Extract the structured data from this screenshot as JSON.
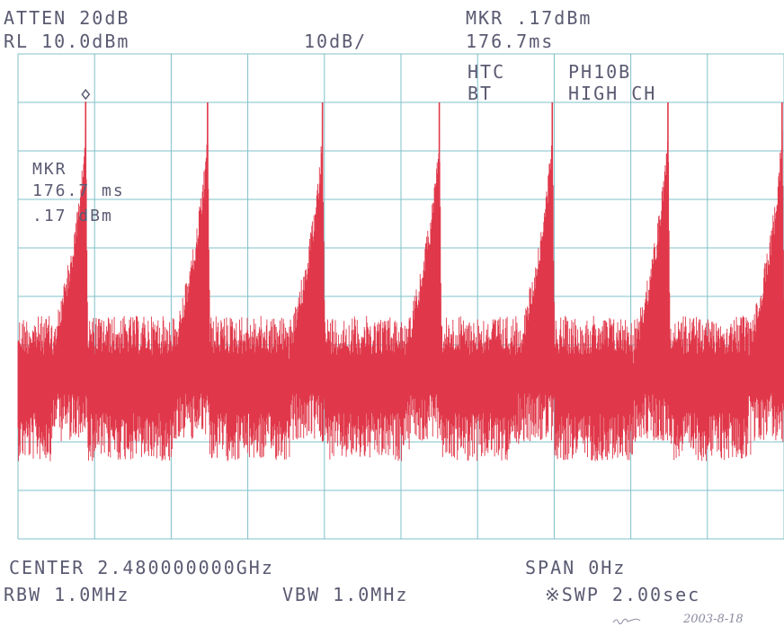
{
  "header": {
    "atten": "ATTEN 20dB",
    "ref_level": "RL 10.0dBm",
    "scale": "10dB/",
    "marker_level": "MKR .17dBm",
    "marker_time": "176.7ms",
    "label_left_1": "HTC",
    "label_right_1": "PH10B",
    "label_left_2": "BT",
    "label_right_2": "HIGH CH"
  },
  "marker_box": {
    "line1": "MKR",
    "line2": "176.7 ms",
    "line3": ".17 dBm"
  },
  "footer": {
    "center": "CENTER 2.480000000GHz",
    "span": "SPAN 0Hz",
    "rbw": "RBW 1.0MHz",
    "vbw": "VBW 1.0MHz",
    "sweep": "※SWP 2.00sec"
  },
  "annotation": {
    "signature": "2003-8-18"
  },
  "colors": {
    "trace": "#e0384a",
    "grid": "#7fc0c8",
    "text": "#5a5a72"
  },
  "chart_data": {
    "type": "line",
    "title": "",
    "xlabel": "",
    "ylabel": "",
    "x_unit": "s",
    "y_unit": "dBm",
    "xlim": [
      0,
      2.0
    ],
    "ylim": [
      -90,
      10
    ],
    "grid": true,
    "reference_level": 10,
    "scale_per_div": 10,
    "marker": {
      "x": 0.1767,
      "y": 0.17
    },
    "noise_floor_range": [
      -64,
      -44
    ],
    "series": [
      {
        "peaks": [
          {
            "x": 0.1767,
            "y": 0.17
          },
          {
            "x": 0.495,
            "y": 0
          },
          {
            "x": 0.795,
            "y": 0
          },
          {
            "x": 1.1,
            "y": 0
          },
          {
            "x": 1.395,
            "y": 0
          },
          {
            "x": 1.697,
            "y": 0
          },
          {
            "x": 1.995,
            "y": 0
          }
        ]
      }
    ]
  }
}
